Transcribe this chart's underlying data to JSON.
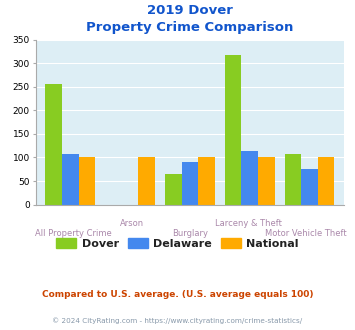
{
  "title_line1": "2019 Dover",
  "title_line2": "Property Crime Comparison",
  "categories": [
    "All Property Crime",
    "Arson",
    "Burglary",
    "Larceny & Theft",
    "Motor Vehicle Theft"
  ],
  "series": {
    "Dover": [
      255,
      0,
      65,
      318,
      107
    ],
    "Delaware": [
      107,
      0,
      90,
      113,
      75
    ],
    "National": [
      100,
      100,
      100,
      100,
      100
    ]
  },
  "colors": {
    "Dover": "#88cc22",
    "Delaware": "#4488ee",
    "National": "#ffaa00"
  },
  "ylim": [
    0,
    350
  ],
  "yticks": [
    0,
    50,
    100,
    150,
    200,
    250,
    300,
    350
  ],
  "bg_color": "#ddeef5",
  "title_color": "#1155cc",
  "xlabel_color": "#aa88aa",
  "legend_label_color": "#222222",
  "footnote1": "Compared to U.S. average. (U.S. average equals 100)",
  "footnote2": "© 2024 CityRating.com - https://www.cityrating.com/crime-statistics/",
  "footnote1_color": "#cc4400",
  "footnote2_color": "#8899aa"
}
